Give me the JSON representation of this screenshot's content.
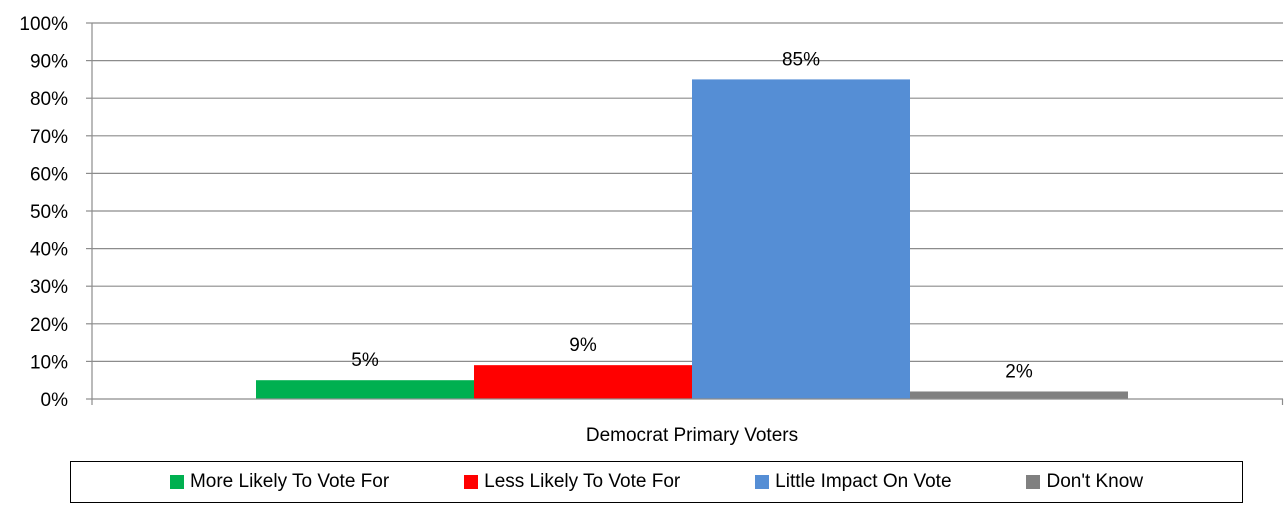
{
  "chart_data": {
    "type": "bar",
    "categories": [
      "Democrat Primary Voters"
    ],
    "xlabel": "Democrat Primary Voters",
    "ylabel": "",
    "ylim": [
      0,
      100
    ],
    "y_tick_step": 10,
    "y_tick_labels": [
      "0%",
      "10%",
      "20%",
      "30%",
      "40%",
      "50%",
      "60%",
      "70%",
      "80%",
      "90%",
      "100%"
    ],
    "grid": true,
    "legend_position": "bottom",
    "series": [
      {
        "name": "More Likely To Vote For",
        "values": [
          5
        ],
        "label": "5%",
        "color": "#00B050"
      },
      {
        "name": "Less Likely To Vote For",
        "values": [
          9
        ],
        "label": "9%",
        "color": "#FF0000"
      },
      {
        "name": "Little Impact On Vote",
        "values": [
          85
        ],
        "label": "85%",
        "color": "#558ED5"
      },
      {
        "name": "Don't Know",
        "values": [
          2
        ],
        "label": "2%",
        "color": "#808080"
      }
    ]
  }
}
